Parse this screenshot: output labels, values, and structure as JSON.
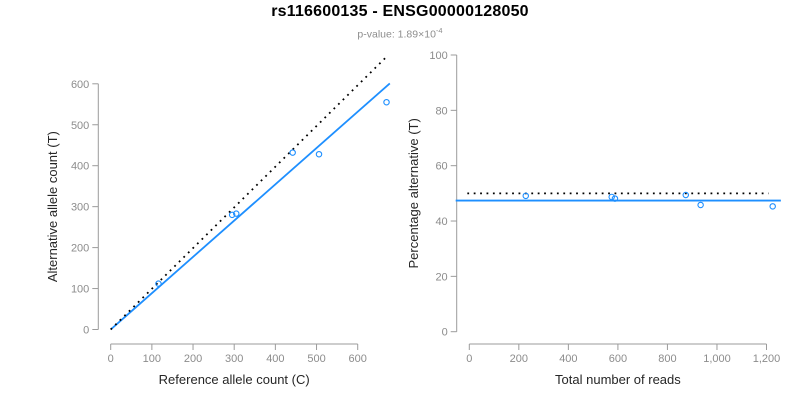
{
  "header": {
    "title": "rs116600135 - ENSG00000128050",
    "subtitle_base": "p-value: 1.89×10",
    "subtitle_exponent": "-4"
  },
  "colors": {
    "accent": "#1E8FFF",
    "expected": "#000000",
    "axis": "#9B9B9B",
    "tick_text": "#8C8C8C",
    "axis_title": "#262626",
    "title_text": "#000000",
    "subtitle_text": "#8E8E8E",
    "background": "#FFFFFF"
  },
  "chart_data": [
    {
      "panel": "allele-counts",
      "type": "scatter",
      "xlabel": "Reference allele count (C)",
      "ylabel": "Alternative allele count (T)",
      "xlim": [
        0,
        690
      ],
      "ylim": [
        0,
        672
      ],
      "grid": false,
      "legend": "none",
      "xticks": [
        0,
        100,
        200,
        300,
        400,
        500,
        600
      ],
      "xtick_labels": [
        "0",
        "100",
        "200",
        "300",
        "400",
        "500",
        "600"
      ],
      "yticks": [
        0,
        100,
        200,
        300,
        400,
        500,
        600
      ],
      "ytick_labels": [
        "0",
        "100",
        "200",
        "300",
        "400",
        "500",
        "600"
      ],
      "points": [
        [
          116,
          112
        ],
        [
          295,
          280
        ],
        [
          305,
          283
        ],
        [
          442,
          432
        ],
        [
          506,
          428
        ],
        [
          670,
          555
        ]
      ],
      "lines": [
        {
          "name": "fitted-line",
          "style": "solid",
          "color": "accent",
          "x1": 0,
          "y1": 0,
          "x2": 678,
          "y2": 601
        },
        {
          "name": "expected-line",
          "style": "dotted",
          "color": "expected",
          "x1": 0,
          "y1": 0,
          "x2": 672,
          "y2": 668
        }
      ]
    },
    {
      "panel": "percentage-alternative",
      "type": "scatter",
      "xlabel": "Total number of reads",
      "ylabel": "Percentage alternative (T)",
      "xlim": [
        0,
        1258
      ],
      "ylim": [
        0,
        100
      ],
      "grid": false,
      "legend": "none",
      "xticks": [
        0,
        200,
        400,
        600,
        800,
        1000,
        1200
      ],
      "xtick_labels": [
        "0",
        "200",
        "400",
        "600",
        "800",
        "1,000",
        "1,200"
      ],
      "yticks": [
        0,
        20,
        40,
        60,
        80,
        100
      ],
      "ytick_labels": [
        "0",
        "20",
        "40",
        "60",
        "80",
        "100"
      ],
      "points": [
        [
          228,
          49.1
        ],
        [
          575,
          48.7
        ],
        [
          588,
          48.1
        ],
        [
          874,
          49.4
        ],
        [
          934,
          45.8
        ],
        [
          1225,
          45.3
        ]
      ],
      "lines": [
        {
          "name": "fitted-line",
          "style": "solid",
          "color": "accent",
          "x1": -55,
          "y1": 47.4,
          "x2": 1258,
          "y2": 47.4
        },
        {
          "name": "expected-line",
          "style": "dotted",
          "color": "expected",
          "x1": -8,
          "y1": 50,
          "x2": 1208,
          "y2": 50
        }
      ]
    }
  ]
}
